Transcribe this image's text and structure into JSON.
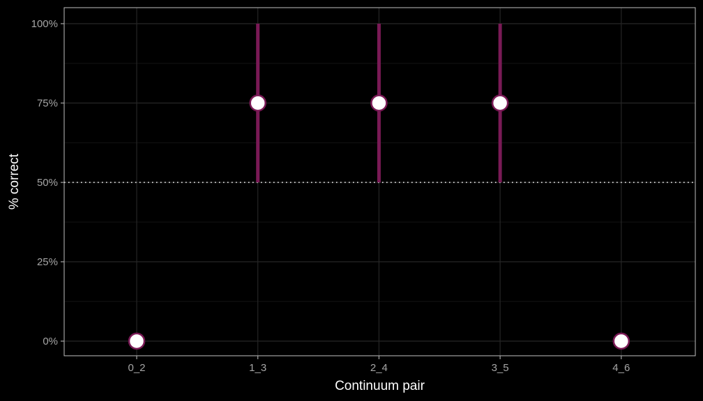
{
  "chart_data": {
    "type": "scatter",
    "title": "",
    "xlabel": "Continuum pair",
    "ylabel": "% correct",
    "categories": [
      "0_2",
      "1_3",
      "2_4",
      "3_5",
      "4_6"
    ],
    "y_ticks": [
      0,
      25,
      50,
      75,
      100
    ],
    "y_tick_labels": [
      "0%",
      "25%",
      "50%",
      "75%",
      "100%"
    ],
    "ylim": [
      0,
      100
    ],
    "reference_line": {
      "y": 50,
      "style": "dotted"
    },
    "points": [
      {
        "category": "0_2",
        "value": 0,
        "lower": 0,
        "upper": 0
      },
      {
        "category": "1_3",
        "value": 75,
        "lower": 50,
        "upper": 100
      },
      {
        "category": "2_4",
        "value": 75,
        "lower": 50,
        "upper": 100
      },
      {
        "category": "3_5",
        "value": 75,
        "lower": 50,
        "upper": 100
      },
      {
        "category": "4_6",
        "value": 0,
        "lower": 0,
        "upper": 0
      }
    ],
    "grid": true,
    "colors": {
      "background": "#000000",
      "errorbar": "#7a1a56",
      "point_fill": "#ffffff",
      "point_stroke": "#7a1a56",
      "grid_major": "#262626",
      "grid_minor": "#141414",
      "panel_border": "#bfbfbf",
      "reference_line": "#ffffff"
    }
  }
}
